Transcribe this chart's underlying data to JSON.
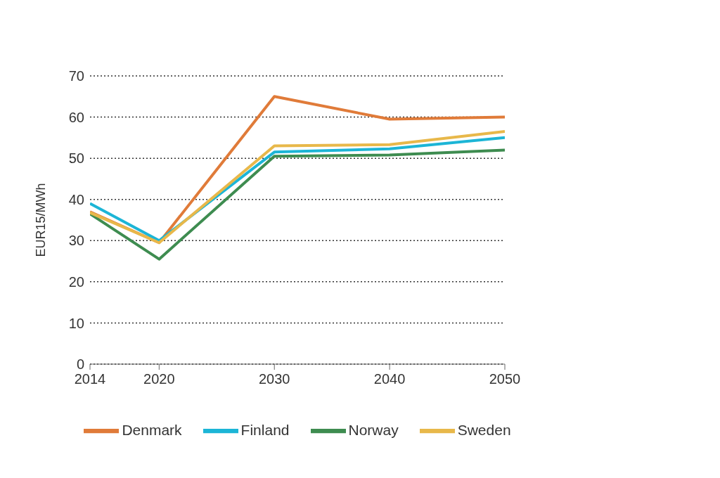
{
  "chart_data": {
    "type": "line",
    "ylabel": "EUR15/MWh",
    "x": [
      2014,
      2020,
      2030,
      2040,
      2050
    ],
    "xlim": [
      2014,
      2050
    ],
    "xticks": [
      2014,
      2020,
      2030,
      2040,
      2050
    ],
    "ylim": [
      0,
      70
    ],
    "yticks": [
      0,
      10,
      20,
      30,
      40,
      50,
      60,
      70
    ],
    "grid": "y",
    "legend": "bottom",
    "marker": "none",
    "line_style": "solid",
    "series": [
      {
        "name": "Denmark",
        "color": "#e07b39",
        "values": [
          37,
          29.5,
          65,
          59.5,
          60
        ]
      },
      {
        "name": "Finland",
        "color": "#1cb5d6",
        "values": [
          39,
          30,
          51.5,
          52.3,
          55
        ]
      },
      {
        "name": "Norway",
        "color": "#3e8c50",
        "values": [
          36.5,
          25.5,
          50.5,
          50.8,
          52
        ]
      },
      {
        "name": "Sweden",
        "color": "#e8b84a",
        "values": [
          36.8,
          29.5,
          53,
          53.3,
          56.5
        ]
      }
    ]
  }
}
